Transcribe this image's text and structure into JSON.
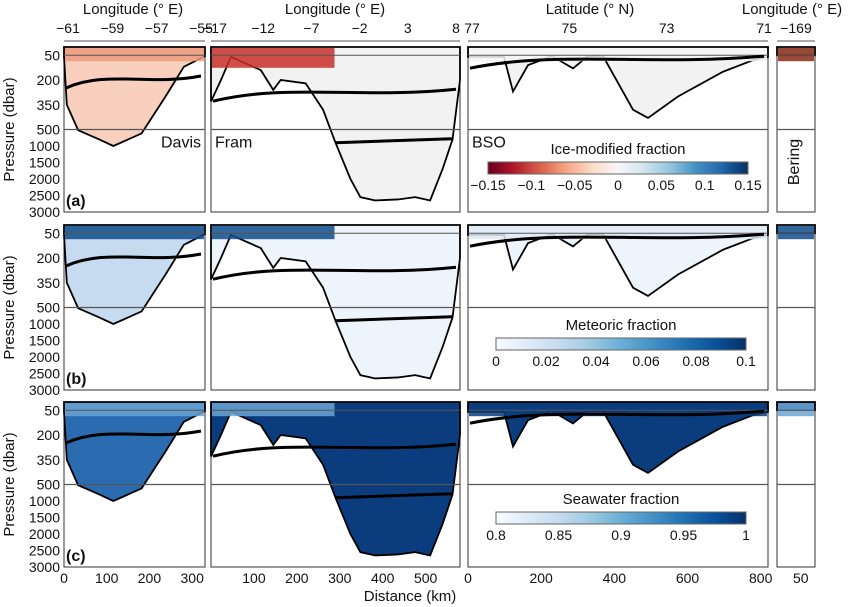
{
  "chart_data": {
    "type": "heatmap",
    "title": "",
    "xlabel": "Distance (km)",
    "ylabel": "Pressure (dbar)",
    "y_ticks": [
      "50",
      "200",
      "350",
      "500",
      "1000",
      "1500",
      "2000",
      "2500",
      "3000"
    ],
    "sections": [
      {
        "name": "Davis",
        "top_axis_label": "Longitude (° E)",
        "top_ticks": [
          "-61",
          "-59",
          "-57",
          "-55"
        ],
        "bottom_ticks": [
          "0",
          "100",
          "200",
          "300"
        ],
        "distance_range": [
          0,
          330
        ],
        "max_depth": 1000
      },
      {
        "name": "Fram",
        "top_axis_label": "Longitude (° E)",
        "top_ticks": [
          "-17",
          "-12",
          "-7",
          "-2",
          "3",
          "8"
        ],
        "bottom_ticks": [
          "100",
          "200",
          "300",
          "400",
          "500"
        ],
        "distance_range": [
          0,
          580
        ],
        "max_depth": 2700
      },
      {
        "name": "BSO",
        "top_axis_label": "Latitude (° N)",
        "top_ticks": [
          "77",
          "75",
          "73",
          "71"
        ],
        "bottom_ticks": [
          "0",
          "200",
          "400",
          "600",
          "800"
        ],
        "distance_range": [
          0,
          820
        ],
        "max_depth": 420
      },
      {
        "name": "Bering",
        "top_axis_label": "Longitude (° E)",
        "top_ticks": [
          "-169"
        ],
        "bottom_ticks": [
          "50"
        ],
        "distance_range": [
          0,
          80
        ],
        "max_depth": 55
      }
    ],
    "panels": [
      {
        "label": "(a)",
        "variable": "Ice-modified fraction",
        "colorbar": {
          "range": [
            -0.15,
            0.15
          ],
          "ticks": [
            "-0.15",
            "-0.1",
            "-0.05",
            "0",
            "0.05",
            "0.1",
            "0.15"
          ],
          "colors": [
            "#67001f",
            "#b2182b",
            "#d6604d",
            "#f4a582",
            "#fddbc7",
            "#f7f7f7",
            "#d1e5f0",
            "#92c5de",
            "#4393c3",
            "#2166ac",
            "#053061"
          ]
        }
      },
      {
        "label": "(b)",
        "variable": "Meteoric fraction",
        "colorbar": {
          "range": [
            0,
            0.1
          ],
          "ticks": [
            "0",
            "0.02",
            "0.04",
            "0.06",
            "0.08",
            "0.1"
          ],
          "colors": [
            "#f7fbff",
            "#deebf7",
            "#c6dbef",
            "#9ecae1",
            "#6baed6",
            "#4292c6",
            "#2171b5",
            "#08519c",
            "#08306b"
          ]
        }
      },
      {
        "label": "(c)",
        "variable": "Seawater fraction",
        "colorbar": {
          "range": [
            0.8,
            1
          ],
          "ticks": [
            "0.8",
            "0.85",
            "0.9",
            "0.95",
            "1"
          ],
          "colors": [
            "#f7fbff",
            "#deebf7",
            "#c6dbef",
            "#9ecae1",
            "#6baed6",
            "#4292c6",
            "#2171b5",
            "#08519c",
            "#08306b"
          ]
        }
      }
    ]
  }
}
